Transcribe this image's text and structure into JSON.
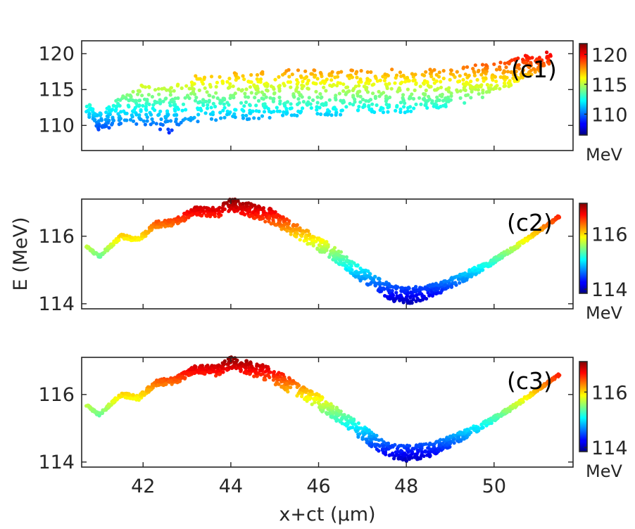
{
  "chart_data": [
    {
      "type": "scatter",
      "panel_label": "(c1)",
      "xlim": [
        40.6,
        51.8
      ],
      "ylim": [
        106.5,
        121.8
      ],
      "yticks": [
        110,
        115,
        120
      ],
      "ytick_labels": [
        "110",
        "115",
        "120"
      ],
      "colorbar": {
        "min": 106.5,
        "max": 121.8,
        "ticks": [
          110,
          115,
          120
        ],
        "tick_labels": [
          "110",
          "115",
          "120"
        ],
        "unit": "MeV"
      },
      "centerline": [
        [
          40.7,
          112.5
        ],
        [
          41.0,
          110.5
        ],
        [
          41.5,
          112
        ],
        [
          42.0,
          113
        ],
        [
          42.6,
          112
        ],
        [
          43.0,
          114
        ],
        [
          43.6,
          113.5
        ],
        [
          44.0,
          114.2
        ],
        [
          44.6,
          114
        ],
        [
          45.0,
          114.5
        ],
        [
          46.0,
          114.5
        ],
        [
          47.0,
          114.8
        ],
        [
          48.0,
          114.8
        ],
        [
          49.0,
          115.2
        ],
        [
          50.0,
          116.5
        ],
        [
          50.6,
          118
        ],
        [
          51.3,
          119.5
        ]
      ],
      "halfwidth": [
        [
          40.7,
          0.8
        ],
        [
          41.2,
          1.5
        ],
        [
          42.0,
          2.8
        ],
        [
          43.0,
          3.2
        ],
        [
          44.0,
          3.4
        ],
        [
          46.0,
          3.2
        ],
        [
          48.0,
          3.0
        ],
        [
          49.5,
          2.5
        ],
        [
          50.6,
          1.8
        ],
        [
          51.3,
          1.0
        ]
      ],
      "points": 1100,
      "seed": 7
    },
    {
      "type": "scatter",
      "panel_label": "(c2)",
      "xlim": [
        40.6,
        51.8
      ],
      "ylim": [
        113.85,
        117.1
      ],
      "yticks": [
        114,
        116
      ],
      "ytick_labels": [
        "114",
        "116"
      ],
      "colorbar": {
        "min": 113.85,
        "max": 117.1,
        "ticks": [
          114,
          116
        ],
        "tick_labels": [
          "114",
          "116"
        ],
        "unit": "MeV"
      },
      "centerline": [
        [
          40.7,
          115.7
        ],
        [
          41.0,
          115.4
        ],
        [
          41.5,
          116.0
        ],
        [
          41.9,
          115.9
        ],
        [
          42.3,
          116.35
        ],
        [
          42.7,
          116.4
        ],
        [
          43.2,
          116.75
        ],
        [
          43.7,
          116.7
        ],
        [
          44.0,
          116.95
        ],
        [
          44.5,
          116.75
        ],
        [
          44.9,
          116.6
        ],
        [
          45.3,
          116.3
        ],
        [
          45.7,
          116.0
        ],
        [
          46.1,
          115.7
        ],
        [
          46.5,
          115.35
        ],
        [
          46.9,
          114.95
        ],
        [
          47.3,
          114.6
        ],
        [
          47.7,
          114.3
        ],
        [
          48.1,
          114.25
        ],
        [
          48.5,
          114.35
        ],
        [
          48.9,
          114.55
        ],
        [
          49.4,
          114.85
        ],
        [
          49.9,
          115.2
        ],
        [
          50.4,
          115.6
        ],
        [
          50.9,
          116.05
        ],
        [
          51.5,
          116.6
        ]
      ],
      "halfwidth": [
        [
          40.7,
          0.04
        ],
        [
          41.5,
          0.06
        ],
        [
          42.3,
          0.09
        ],
        [
          43.2,
          0.12
        ],
        [
          44.0,
          0.18
        ],
        [
          44.9,
          0.22
        ],
        [
          46.0,
          0.22
        ],
        [
          47.3,
          0.22
        ],
        [
          48.1,
          0.24
        ],
        [
          49.0,
          0.16
        ],
        [
          50.0,
          0.08
        ],
        [
          50.9,
          0.05
        ],
        [
          51.5,
          0.04
        ]
      ],
      "points": 1300,
      "seed": 19
    },
    {
      "type": "scatter",
      "panel_label": "(c3)",
      "xlim": [
        40.6,
        51.8
      ],
      "ylim": [
        113.85,
        117.1
      ],
      "yticks": [
        114,
        116
      ],
      "ytick_labels": [
        "114",
        "116"
      ],
      "colorbar": {
        "min": 113.85,
        "max": 117.1,
        "ticks": [
          114,
          116
        ],
        "tick_labels": [
          "114",
          "116"
        ],
        "unit": "MeV"
      },
      "centerline": [
        [
          40.7,
          115.7
        ],
        [
          41.0,
          115.4
        ],
        [
          41.5,
          116.0
        ],
        [
          41.9,
          115.9
        ],
        [
          42.3,
          116.35
        ],
        [
          42.7,
          116.4
        ],
        [
          43.2,
          116.75
        ],
        [
          43.7,
          116.7
        ],
        [
          44.0,
          116.95
        ],
        [
          44.5,
          116.75
        ],
        [
          44.9,
          116.6
        ],
        [
          45.3,
          116.3
        ],
        [
          45.7,
          116.0
        ],
        [
          46.1,
          115.7
        ],
        [
          46.5,
          115.35
        ],
        [
          46.9,
          114.95
        ],
        [
          47.3,
          114.6
        ],
        [
          47.7,
          114.3
        ],
        [
          48.1,
          114.25
        ],
        [
          48.5,
          114.35
        ],
        [
          48.9,
          114.55
        ],
        [
          49.4,
          114.85
        ],
        [
          49.9,
          115.2
        ],
        [
          50.4,
          115.6
        ],
        [
          50.9,
          116.05
        ],
        [
          51.5,
          116.6
        ]
      ],
      "halfwidth": [
        [
          40.7,
          0.04
        ],
        [
          41.5,
          0.06
        ],
        [
          42.3,
          0.09
        ],
        [
          43.2,
          0.12
        ],
        [
          44.0,
          0.18
        ],
        [
          44.9,
          0.22
        ],
        [
          46.0,
          0.22
        ],
        [
          47.3,
          0.22
        ],
        [
          48.1,
          0.24
        ],
        [
          49.0,
          0.16
        ],
        [
          50.0,
          0.08
        ],
        [
          50.9,
          0.05
        ],
        [
          51.5,
          0.04
        ]
      ],
      "points": 1300,
      "seed": 31
    }
  ],
  "shared": {
    "xticks": [
      42,
      44,
      46,
      48,
      50
    ],
    "xtick_labels": [
      "42",
      "44",
      "46",
      "48",
      "50"
    ],
    "xlabel": "x+ct (μm)",
    "ylabel": "E (MeV)",
    "colormap": "jet"
  }
}
